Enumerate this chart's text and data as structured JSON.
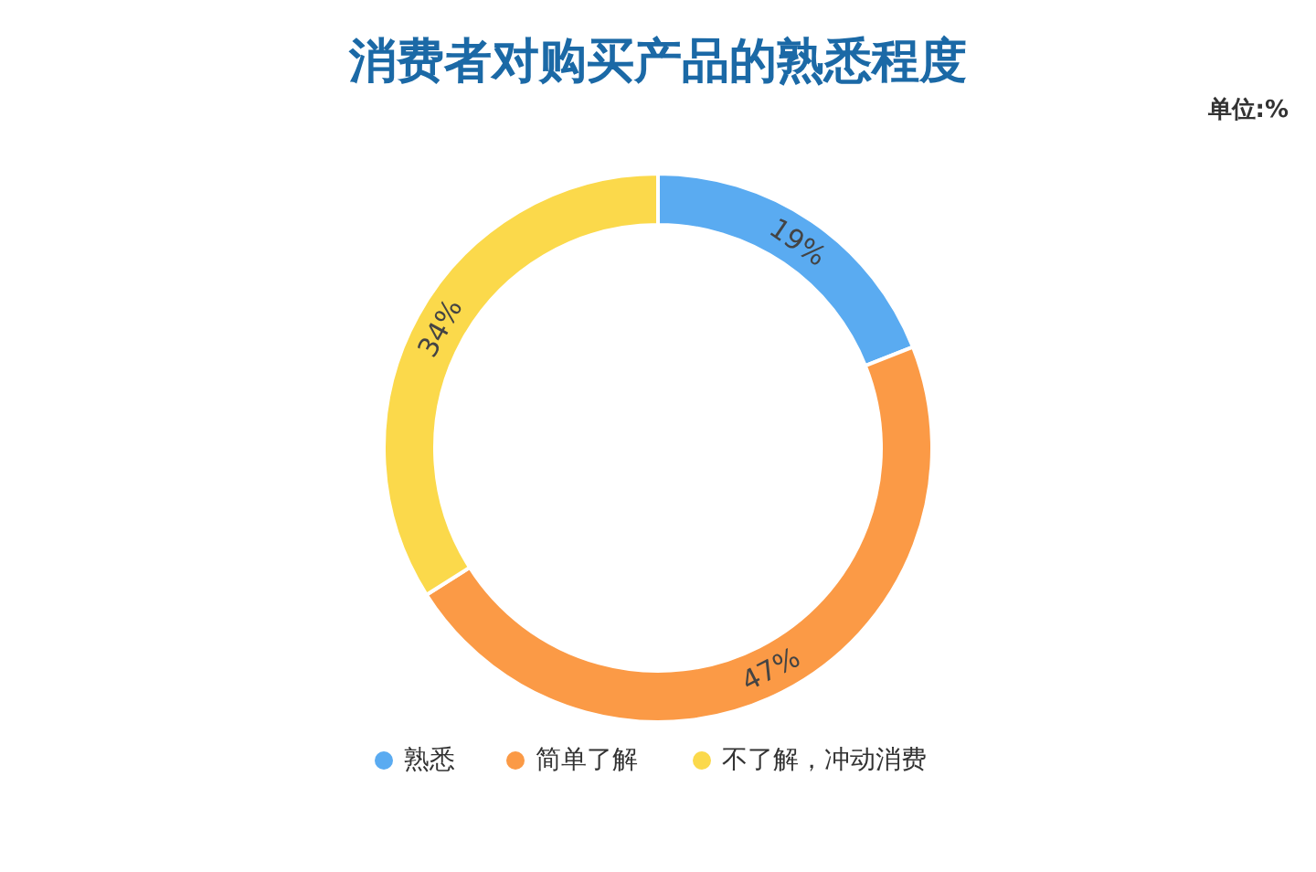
{
  "chart_data": {
    "type": "donut",
    "title": "消费者对购买产品的熟悉程度",
    "subtitle": "单位:%",
    "categories": [
      "熟悉",
      "简单了解",
      "不了解，冲动消费"
    ],
    "values": [
      19,
      47,
      34
    ],
    "colors": [
      "#5aabf1",
      "#fb9a46",
      "#fbd94b"
    ],
    "value_labels": [
      "19%",
      "47%",
      "34%"
    ],
    "legend": "bottom"
  }
}
